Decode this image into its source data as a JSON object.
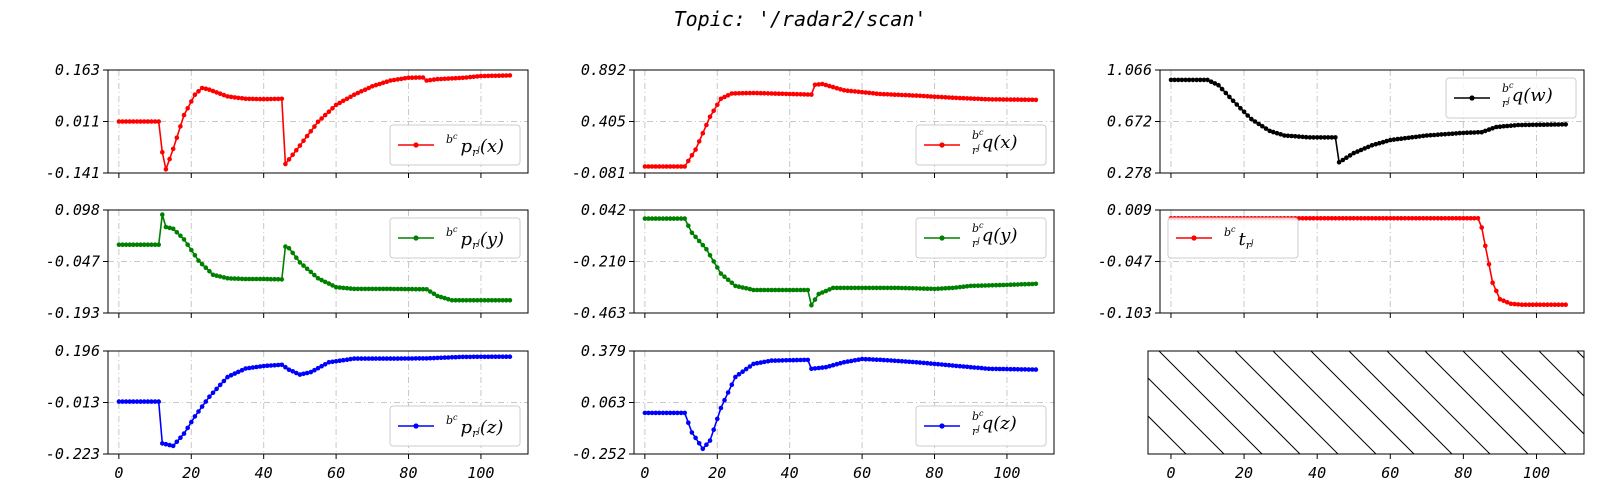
{
  "title": "Topic: '/radar2/scan'",
  "hatch_panel": true,
  "x_ticks": [
    0,
    20,
    40,
    60,
    80,
    100
  ],
  "chart_data": [
    {
      "type": "line",
      "legend": {
        "sup": "b",
        "supsup": "c",
        "base": "p",
        "sub": "r",
        "subsup": "j",
        "arg": "(x)",
        "loc": "lower-right"
      },
      "color": "#ff0000",
      "xlim": [
        -3,
        113
      ],
      "ylim": [
        -0.141,
        0.163
      ],
      "yticks": [
        "0.163",
        "0.011",
        "-0.141"
      ],
      "keys": [
        [
          0,
          0.011
        ],
        [
          11,
          0.011
        ],
        [
          12,
          -0.08
        ],
        [
          13,
          -0.13
        ],
        [
          15,
          -0.07
        ],
        [
          18,
          0.03
        ],
        [
          21,
          0.09
        ],
        [
          23,
          0.11
        ],
        [
          25,
          0.105
        ],
        [
          30,
          0.085
        ],
        [
          35,
          0.078
        ],
        [
          40,
          0.077
        ],
        [
          45.4,
          0.078
        ],
        [
          45.6,
          -0.12
        ],
        [
          50,
          -0.06
        ],
        [
          55,
          0.01
        ],
        [
          60,
          0.06
        ],
        [
          65,
          0.09
        ],
        [
          70,
          0.115
        ],
        [
          75,
          0.132
        ],
        [
          80,
          0.14
        ],
        [
          84,
          0.141
        ],
        [
          85,
          0.132
        ],
        [
          88,
          0.136
        ],
        [
          95,
          0.14
        ],
        [
          100,
          0.145
        ],
        [
          108,
          0.147
        ]
      ]
    },
    {
      "type": "line",
      "legend": {
        "sup": "b",
        "supsup": "c",
        "base": "q",
        "sub": "r",
        "subsup": "j",
        "arg": "(x)",
        "loc": "lower-right"
      },
      "color": "#ff0000",
      "xlim": [
        -3,
        113
      ],
      "ylim": [
        -0.081,
        0.892
      ],
      "yticks": [
        "0.892",
        "0.405",
        "-0.081"
      ],
      "keys": [
        [
          0,
          -0.02
        ],
        [
          11,
          -0.02
        ],
        [
          14,
          0.14
        ],
        [
          18,
          0.45
        ],
        [
          21,
          0.62
        ],
        [
          24,
          0.67
        ],
        [
          30,
          0.675
        ],
        [
          40,
          0.665
        ],
        [
          46,
          0.66
        ],
        [
          46.5,
          0.75
        ],
        [
          49,
          0.76
        ],
        [
          55,
          0.7
        ],
        [
          65,
          0.665
        ],
        [
          75,
          0.65
        ],
        [
          85,
          0.63
        ],
        [
          95,
          0.615
        ],
        [
          108,
          0.61
        ]
      ]
    },
    {
      "type": "line",
      "legend": {
        "sup": "b",
        "supsup": "c",
        "base": "q",
        "sub": "r",
        "subsup": "j",
        "arg": "(w)",
        "loc": "upper-right"
      },
      "color": "#000000",
      "xlim": [
        -3,
        113
      ],
      "ylim": [
        0.278,
        1.066
      ],
      "yticks": [
        "1.066",
        "0.672",
        "0.278"
      ],
      "keys": [
        [
          0,
          0.99
        ],
        [
          10,
          0.99
        ],
        [
          13,
          0.95
        ],
        [
          17,
          0.83
        ],
        [
          22,
          0.69
        ],
        [
          27,
          0.6
        ],
        [
          31,
          0.565
        ],
        [
          38,
          0.55
        ],
        [
          45.5,
          0.55
        ],
        [
          46,
          0.36
        ],
        [
          50,
          0.43
        ],
        [
          55,
          0.49
        ],
        [
          60,
          0.53
        ],
        [
          70,
          0.565
        ],
        [
          80,
          0.585
        ],
        [
          85,
          0.59
        ],
        [
          89,
          0.63
        ],
        [
          95,
          0.645
        ],
        [
          108,
          0.65
        ]
      ]
    },
    {
      "type": "line",
      "legend": {
        "sup": "b",
        "supsup": "c",
        "base": "p",
        "sub": "r",
        "subsup": "j",
        "arg": "(y)",
        "loc": "upper-right"
      },
      "color": "#008000",
      "xlim": [
        -3,
        113
      ],
      "ylim": [
        -0.193,
        0.098
      ],
      "yticks": [
        "0.098",
        "-0.047",
        "-0.193"
      ],
      "keys": [
        [
          0,
          0.0
        ],
        [
          11,
          0.0
        ],
        [
          11.5,
          0.03
        ],
        [
          12,
          0.085
        ],
        [
          13,
          0.05
        ],
        [
          15,
          0.045
        ],
        [
          18,
          0.015
        ],
        [
          22,
          -0.045
        ],
        [
          26,
          -0.085
        ],
        [
          30,
          -0.095
        ],
        [
          35,
          -0.097
        ],
        [
          40,
          -0.097
        ],
        [
          45,
          -0.098
        ],
        [
          45.5,
          -0.003
        ],
        [
          47,
          -0.01
        ],
        [
          50,
          -0.05
        ],
        [
          55,
          -0.095
        ],
        [
          60,
          -0.12
        ],
        [
          65,
          -0.125
        ],
        [
          75,
          -0.125
        ],
        [
          85,
          -0.126
        ],
        [
          88,
          -0.145
        ],
        [
          92,
          -0.157
        ],
        [
          100,
          -0.157
        ],
        [
          108,
          -0.157
        ]
      ]
    },
    {
      "type": "line",
      "legend": {
        "sup": "b",
        "supsup": "c",
        "base": "q",
        "sub": "r",
        "subsup": "j",
        "arg": "(y)",
        "loc": "upper-right"
      },
      "color": "#008000",
      "xlim": [
        -3,
        113
      ],
      "ylim": [
        -0.463,
        0.042
      ],
      "yticks": [
        "0.042",
        "-0.210",
        "-0.463"
      ],
      "keys": [
        [
          0,
          0.0
        ],
        [
          11,
          0.0
        ],
        [
          13,
          -0.07
        ],
        [
          17,
          -0.15
        ],
        [
          21,
          -0.27
        ],
        [
          25,
          -0.33
        ],
        [
          30,
          -0.35
        ],
        [
          45.5,
          -0.35
        ],
        [
          46,
          -0.425
        ],
        [
          48,
          -0.37
        ],
        [
          52,
          -0.34
        ],
        [
          60,
          -0.34
        ],
        [
          70,
          -0.34
        ],
        [
          80,
          -0.345
        ],
        [
          85,
          -0.34
        ],
        [
          90,
          -0.33
        ],
        [
          100,
          -0.325
        ],
        [
          108,
          -0.32
        ]
      ]
    },
    {
      "type": "line",
      "legend": {
        "sup": "b",
        "supsup": "c",
        "base": "t",
        "sub": "r",
        "subsup": "j",
        "arg": "",
        "loc": "upper-left"
      },
      "color": "#ff0000",
      "xlim": [
        -3,
        113
      ],
      "ylim": [
        -0.103,
        0.009
      ],
      "yticks": [
        "0.009",
        "-0.047",
        "-0.103"
      ],
      "keys": [
        [
          0,
          0.0
        ],
        [
          84.5,
          0.0
        ],
        [
          86,
          -0.03
        ],
        [
          88,
          -0.07
        ],
        [
          90,
          -0.088
        ],
        [
          93,
          -0.093
        ],
        [
          96,
          -0.094
        ],
        [
          108,
          -0.094
        ]
      ]
    },
    {
      "type": "line",
      "legend": {
        "sup": "b",
        "supsup": "c",
        "base": "p",
        "sub": "r",
        "subsup": "j",
        "arg": "(z)",
        "loc": "lower-right"
      },
      "color": "#0000ff",
      "xlim": [
        -3,
        113
      ],
      "ylim": [
        -0.223,
        0.196
      ],
      "yticks": [
        "0.196",
        "-0.013",
        "-0.223"
      ],
      "keys": [
        [
          0,
          -0.01
        ],
        [
          11,
          -0.01
        ],
        [
          12,
          -0.18
        ],
        [
          15,
          -0.19
        ],
        [
          18,
          -0.14
        ],
        [
          21,
          -0.07
        ],
        [
          25,
          0.01
        ],
        [
          30,
          0.09
        ],
        [
          35,
          0.125
        ],
        [
          40,
          0.135
        ],
        [
          45,
          0.14
        ],
        [
          47,
          0.12
        ],
        [
          50,
          0.1
        ],
        [
          53,
          0.11
        ],
        [
          58,
          0.15
        ],
        [
          65,
          0.165
        ],
        [
          75,
          0.165
        ],
        [
          85,
          0.166
        ],
        [
          95,
          0.172
        ],
        [
          108,
          0.173
        ]
      ]
    },
    {
      "type": "line",
      "legend": {
        "sup": "b",
        "supsup": "c",
        "base": "q",
        "sub": "r",
        "subsup": "j",
        "arg": "(z)",
        "loc": "lower-right"
      },
      "color": "#0000ff",
      "xlim": [
        -3,
        113
      ],
      "ylim": [
        -0.252,
        0.379
      ],
      "yticks": [
        "0.379",
        "0.063",
        "-0.252"
      ],
      "keys": [
        [
          0,
          0.0
        ],
        [
          11,
          0.0
        ],
        [
          13,
          -0.12
        ],
        [
          16,
          -0.22
        ],
        [
          18,
          -0.17
        ],
        [
          21,
          0.03
        ],
        [
          25,
          0.22
        ],
        [
          30,
          0.3
        ],
        [
          35,
          0.32
        ],
        [
          45.5,
          0.325
        ],
        [
          46,
          0.27
        ],
        [
          50,
          0.28
        ],
        [
          55,
          0.31
        ],
        [
          60,
          0.33
        ],
        [
          65,
          0.325
        ],
        [
          75,
          0.31
        ],
        [
          85,
          0.29
        ],
        [
          95,
          0.27
        ],
        [
          108,
          0.265
        ]
      ]
    }
  ]
}
